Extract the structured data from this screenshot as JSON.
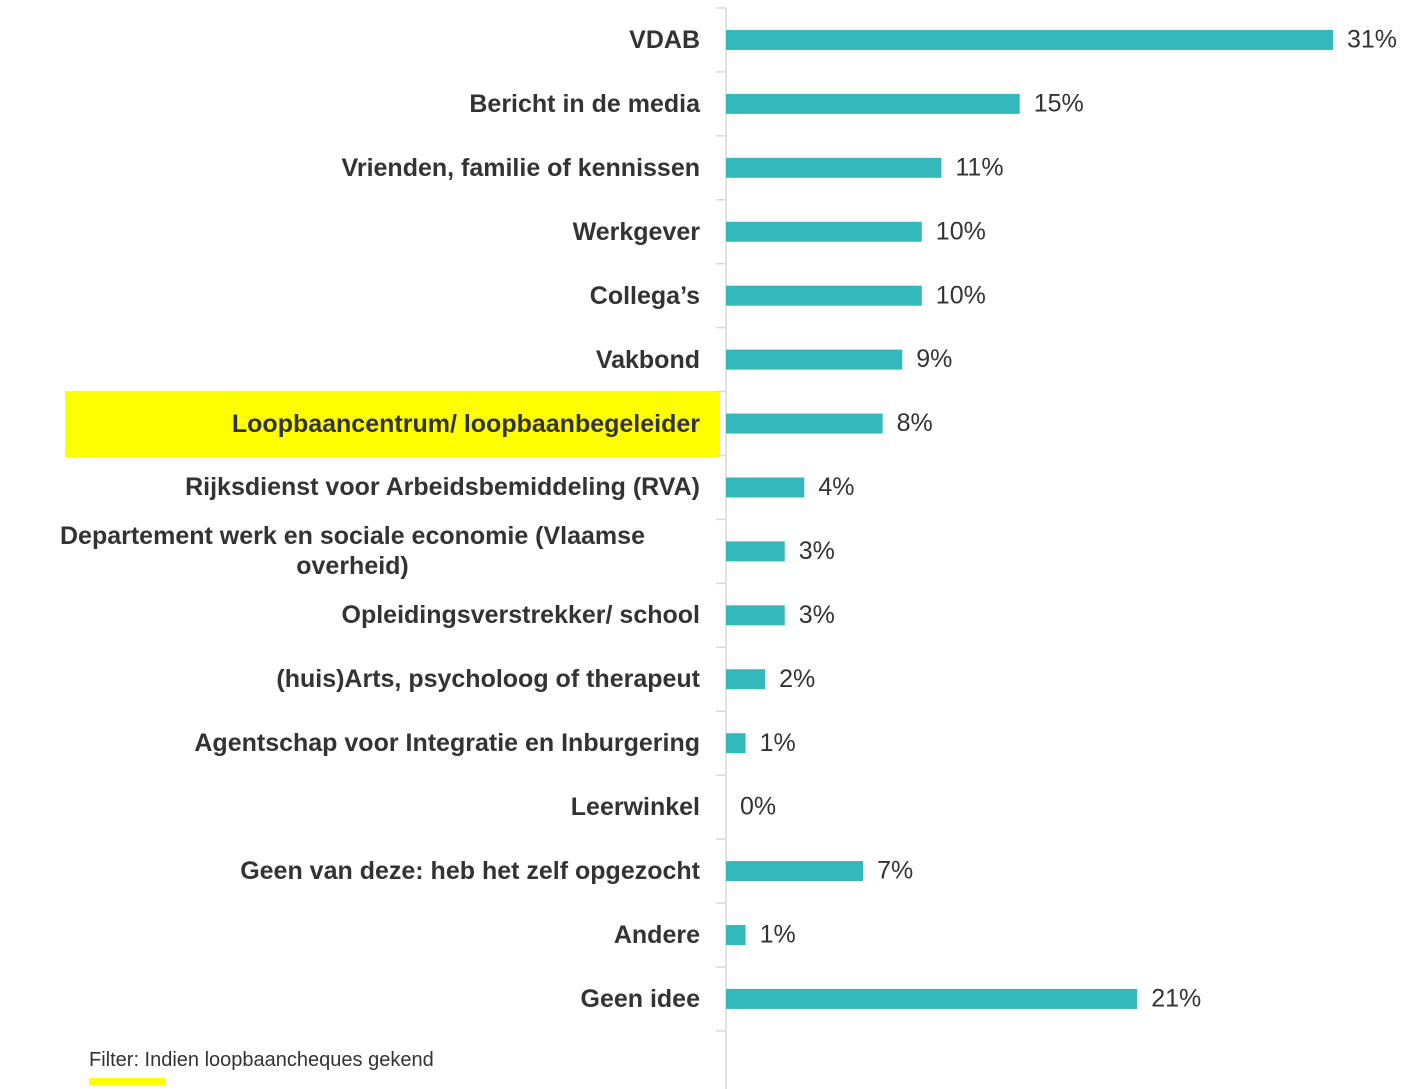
{
  "chart_data": {
    "type": "barh",
    "categories": [
      "VDAB",
      "Bericht in de media",
      "Vrienden, familie of kennissen",
      "Werkgever",
      "Collega’s",
      "Vakbond",
      "Loopbaancentrum/ loopbaanbegeleider",
      "Rijksdienst voor Arbeidsbemiddeling (RVA)",
      "Departement werk en sociale economie (Vlaamse overheid)",
      "Opleidingsverstrekker/ school",
      "(huis)Arts, psycholoog of therapeut",
      "Agentschap voor Integratie en Inburgering",
      "Leerwinkel",
      "Geen van deze: heb het zelf opgezocht",
      "Andere",
      "Geen idee"
    ],
    "values": [
      31,
      15,
      11,
      10,
      10,
      9,
      8,
      4,
      3,
      3,
      2,
      1,
      0,
      7,
      1,
      21
    ],
    "value_labels": [
      "31%",
      "15%",
      "11%",
      "10%",
      "10%",
      "9%",
      "8%",
      "4%",
      "3%",
      "3%",
      "2%",
      "1%",
      "0%",
      "7%",
      "1%",
      "21%"
    ],
    "color": "#33b8bb",
    "xlim": [
      0,
      31
    ],
    "note": "Filter: Indien loopbaancheques gekend"
  }
}
